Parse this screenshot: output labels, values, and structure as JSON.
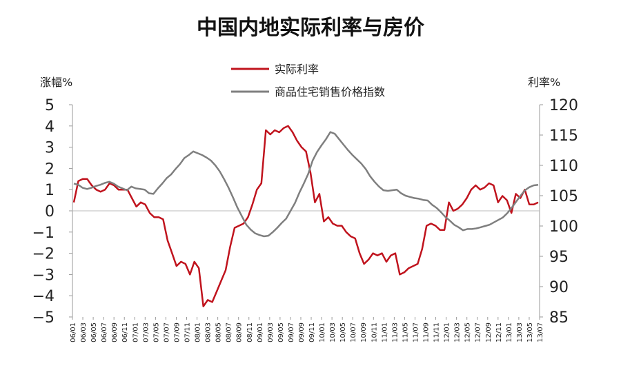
{
  "chart_data": {
    "type": "line",
    "title": "中国内地实际利率与房价",
    "left_axis_label": "涨幅%",
    "right_axis_label": "利率%",
    "left_ylim": [
      -5,
      5
    ],
    "left_ticks": [
      "5",
      "4",
      "3",
      "2",
      "1",
      "0",
      "−1",
      "−2",
      "−3",
      "−4",
      "−5"
    ],
    "right_ylim": [
      85,
      120
    ],
    "right_ticks": [
      "120",
      "115",
      "110",
      "105",
      "100",
      "95",
      "90",
      "85"
    ],
    "x_labels": [
      "06/01",
      "06/03",
      "06/05",
      "06/07",
      "06/09",
      "06/11",
      "07/01",
      "07/03",
      "07/05",
      "07/07",
      "07/09",
      "07/11",
      "08/01",
      "08/03",
      "08/05",
      "08/07",
      "08/09",
      "08/11",
      "09/01",
      "09/03",
      "09/05",
      "09/07",
      "09/09",
      "09/11",
      "10/01",
      "10/03",
      "10/05",
      "10/07",
      "10/09",
      "10/11",
      "11/01",
      "11/03",
      "11/05",
      "11/07",
      "11/09",
      "11/11",
      "12/01",
      "12/03",
      "12/05",
      "12/07",
      "12/09",
      "12/11",
      "13/01",
      "13/03",
      "13/05",
      "13/07"
    ],
    "legend": "top-center",
    "series": [
      {
        "name": "实际利率",
        "axis": "left",
        "color": "#c0131d",
        "values": [
          0.4,
          1.4,
          1.5,
          1.5,
          1.2,
          1.0,
          0.9,
          1.0,
          1.3,
          1.2,
          1.0,
          1.0,
          1.0,
          0.6,
          0.2,
          0.4,
          0.3,
          -0.1,
          -0.3,
          -0.3,
          -0.4,
          -1.4,
          -2.0,
          -2.6,
          -2.4,
          -2.5,
          -3.0,
          -2.4,
          -2.7,
          -4.5,
          -4.2,
          -4.3,
          -3.8,
          -3.3,
          -2.8,
          -1.7,
          -0.8,
          -0.7,
          -0.6,
          -0.3,
          0.3,
          1.0,
          1.3,
          3.8,
          3.6,
          3.8,
          3.7,
          3.9,
          4.0,
          3.7,
          3.3,
          3.0,
          2.8,
          1.8,
          0.4,
          0.8,
          -0.5,
          -0.3,
          -0.6,
          -0.7,
          -0.7,
          -1.0,
          -1.2,
          -1.3,
          -2.0,
          -2.5,
          -2.3,
          -2.0,
          -2.1,
          -2.0,
          -2.4,
          -2.1,
          -2.0,
          -3.0,
          -2.9,
          -2.7,
          -2.6,
          -2.5,
          -1.8,
          -0.7,
          -0.6,
          -0.7,
          -0.9,
          -0.9,
          0.4,
          0.0,
          0.1,
          0.3,
          0.6,
          1.0,
          1.2,
          1.0,
          1.1,
          1.3,
          1.2,
          0.4,
          0.7,
          0.5,
          -0.1,
          0.8,
          0.6,
          1.0,
          0.3,
          0.3,
          0.4
        ]
      },
      {
        "name": "商品住宅销售价格指数",
        "axis": "right",
        "color": "#7f7f7f",
        "values": [
          107.0,
          106.8,
          106.3,
          106.1,
          106.3,
          106.6,
          106.8,
          107.1,
          107.3,
          107.0,
          106.5,
          106.2,
          105.9,
          106.5,
          106.2,
          106.1,
          106.0,
          105.4,
          105.3,
          106.2,
          107.0,
          107.9,
          108.5,
          109.4,
          110.2,
          111.2,
          111.7,
          112.3,
          112.0,
          111.7,
          111.3,
          110.8,
          110.0,
          109.0,
          107.7,
          106.3,
          104.7,
          103.0,
          101.6,
          100.2,
          99.4,
          98.8,
          98.5,
          98.3,
          98.4,
          99.0,
          99.7,
          100.5,
          101.2,
          102.5,
          103.8,
          105.5,
          107.0,
          108.6,
          110.8,
          112.2,
          113.3,
          114.3,
          115.5,
          115.2,
          114.3,
          113.4,
          112.5,
          111.7,
          111.0,
          110.3,
          109.4,
          108.2,
          107.3,
          106.5,
          105.9,
          105.8,
          105.9,
          106.0,
          105.4,
          105.0,
          104.8,
          104.6,
          104.5,
          104.3,
          104.2,
          103.5,
          103.0,
          102.3,
          101.5,
          100.9,
          100.2,
          99.8,
          99.3,
          99.5,
          99.5,
          99.6,
          99.8,
          100.0,
          100.2,
          100.6,
          101.0,
          101.4,
          102.1,
          103.0,
          104.0,
          105.0,
          105.9,
          106.4,
          106.7,
          106.8
        ]
      }
    ]
  }
}
